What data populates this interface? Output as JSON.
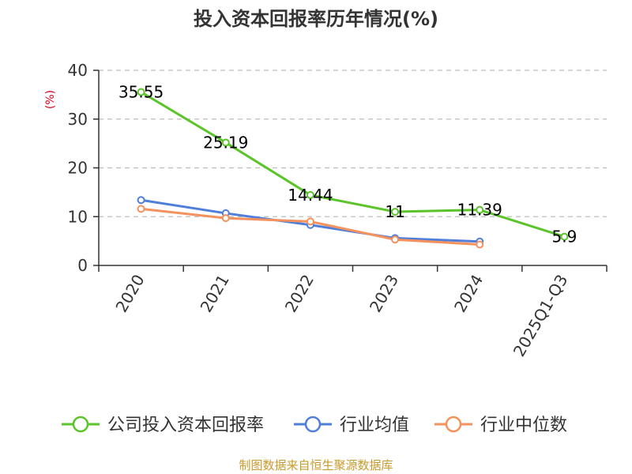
{
  "chart_data": {
    "type": "line",
    "title": "投入资本回报率历年情况(%)",
    "ylabel": "(%)",
    "xlabel": "",
    "categories": [
      "2020",
      "2021",
      "2022",
      "2023",
      "2024",
      "2025Q1-Q3"
    ],
    "ylim": [
      0,
      40
    ],
    "yticks": [
      0,
      10,
      20,
      30,
      40
    ],
    "grid": true,
    "legend_position": "bottom",
    "series": [
      {
        "name": "公司投入资本回报率",
        "color": "#5bc42a",
        "values": [
          35.55,
          25.19,
          14.44,
          11,
          11.39,
          5.9
        ],
        "labels": [
          "35.55",
          "25.19",
          "14.44",
          "11",
          "11.39",
          "5.9"
        ]
      },
      {
        "name": "行业均值",
        "color": "#4f7fd9",
        "values": [
          13.4,
          10.7,
          8.3,
          5.6,
          4.9,
          null
        ]
      },
      {
        "name": "行业中位数",
        "color": "#f4915d",
        "values": [
          11.6,
          9.7,
          9.0,
          5.3,
          4.3,
          null
        ]
      }
    ]
  },
  "source": "制图数据来自恒生聚源数据库"
}
